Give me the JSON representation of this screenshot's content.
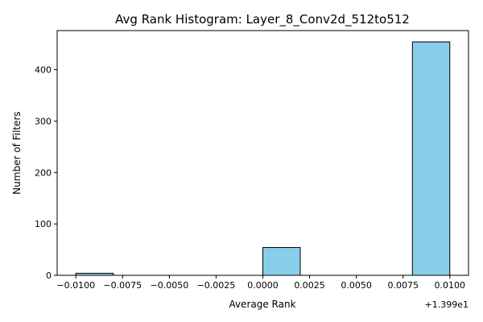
{
  "chart_data": {
    "type": "bar",
    "title": "Avg Rank Histogram: Layer_8_Conv2d_512to512",
    "xlabel": "Average Rank",
    "ylabel": "Number of Filters",
    "offset_label": "+1.399e1",
    "bins": [
      {
        "x0": -0.01,
        "x1": -0.008,
        "count": 4
      },
      {
        "x0": -0.008,
        "x1": -0.006,
        "count": 0
      },
      {
        "x0": -0.006,
        "x1": -0.004,
        "count": 0
      },
      {
        "x0": -0.004,
        "x1": -0.002,
        "count": 0
      },
      {
        "x0": -0.002,
        "x1": 0.0,
        "count": 0
      },
      {
        "x0": 0.0,
        "x1": 0.002,
        "count": 54
      },
      {
        "x0": 0.002,
        "x1": 0.004,
        "count": 0
      },
      {
        "x0": 0.004,
        "x1": 0.006,
        "count": 0
      },
      {
        "x0": 0.006,
        "x1": 0.008,
        "count": 0
      },
      {
        "x0": 0.008,
        "x1": 0.01,
        "count": 454
      }
    ],
    "xlim": [
      -0.011,
      0.011
    ],
    "ylim": [
      0,
      476
    ],
    "x_ticks": [
      {
        "value": -0.01,
        "label": "−0.0100"
      },
      {
        "value": -0.0075,
        "label": "−0.0075"
      },
      {
        "value": -0.005,
        "label": "−0.0050"
      },
      {
        "value": -0.0025,
        "label": "−0.0025"
      },
      {
        "value": 0.0,
        "label": "0.0000"
      },
      {
        "value": 0.0025,
        "label": "0.0025"
      },
      {
        "value": 0.005,
        "label": "0.0050"
      },
      {
        "value": 0.0075,
        "label": "0.0075"
      },
      {
        "value": 0.01,
        "label": "0.0100"
      }
    ],
    "y_ticks": [
      {
        "value": 0,
        "label": "0"
      },
      {
        "value": 100,
        "label": "100"
      },
      {
        "value": 200,
        "label": "200"
      },
      {
        "value": 300,
        "label": "300"
      },
      {
        "value": 400,
        "label": "400"
      }
    ],
    "grid": false,
    "bar_color": "#87CEEB",
    "edge_color": "#000000"
  }
}
